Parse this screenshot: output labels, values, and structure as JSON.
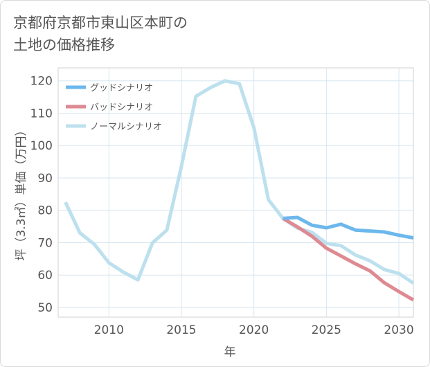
{
  "title": {
    "line1": "京都府京都市東山区本町の",
    "line2": "土地の価格推移"
  },
  "chart_data": {
    "type": "line",
    "xlabel": "年",
    "ylabel": "坪（3.3㎡）単価（万円）",
    "xlim": [
      2006.5,
      2031
    ],
    "ylim": [
      47,
      124
    ],
    "xticks": [
      2010,
      2015,
      2020,
      2025,
      2030
    ],
    "yticks": [
      50,
      60,
      70,
      80,
      90,
      100,
      110,
      120
    ],
    "grid": true,
    "legend_position": "top-left",
    "series": [
      {
        "name": "グッドシナリオ",
        "color": "#6cb8ec",
        "x": [
          2022,
          2023,
          2024,
          2025,
          2026,
          2027,
          2028,
          2029,
          2030,
          2031
        ],
        "y": [
          77.5,
          77.8,
          75.4,
          74.6,
          75.7,
          73.9,
          73.6,
          73.3,
          72.3,
          71.5
        ]
      },
      {
        "name": "バッドシナリオ",
        "color": "#de8a92",
        "x": [
          2022,
          2023,
          2024,
          2025,
          2026,
          2027,
          2028,
          2029,
          2030,
          2031
        ],
        "y": [
          77.5,
          74.9,
          72.0,
          68.3,
          65.9,
          63.5,
          61.3,
          57.6,
          54.9,
          52.3
        ]
      },
      {
        "name": "ノーマルシナリオ",
        "color": "#bde0ee",
        "x": [
          2007,
          2008,
          2009,
          2010,
          2011,
          2012,
          2013,
          2014,
          2015,
          2016,
          2017,
          2018,
          2019,
          2020,
          2021,
          2022,
          2023,
          2024,
          2025,
          2026,
          2027,
          2028,
          2029,
          2030,
          2031
        ],
        "y": [
          82.5,
          73,
          69.5,
          63.8,
          60.9,
          58.5,
          69.9,
          73.9,
          93.6,
          115.2,
          117.9,
          120,
          119.1,
          105.5,
          83.3,
          77.5,
          74.5,
          73.2,
          69.8,
          69.1,
          66.2,
          64.4,
          61.7,
          60.5,
          57.5
        ]
      }
    ]
  }
}
